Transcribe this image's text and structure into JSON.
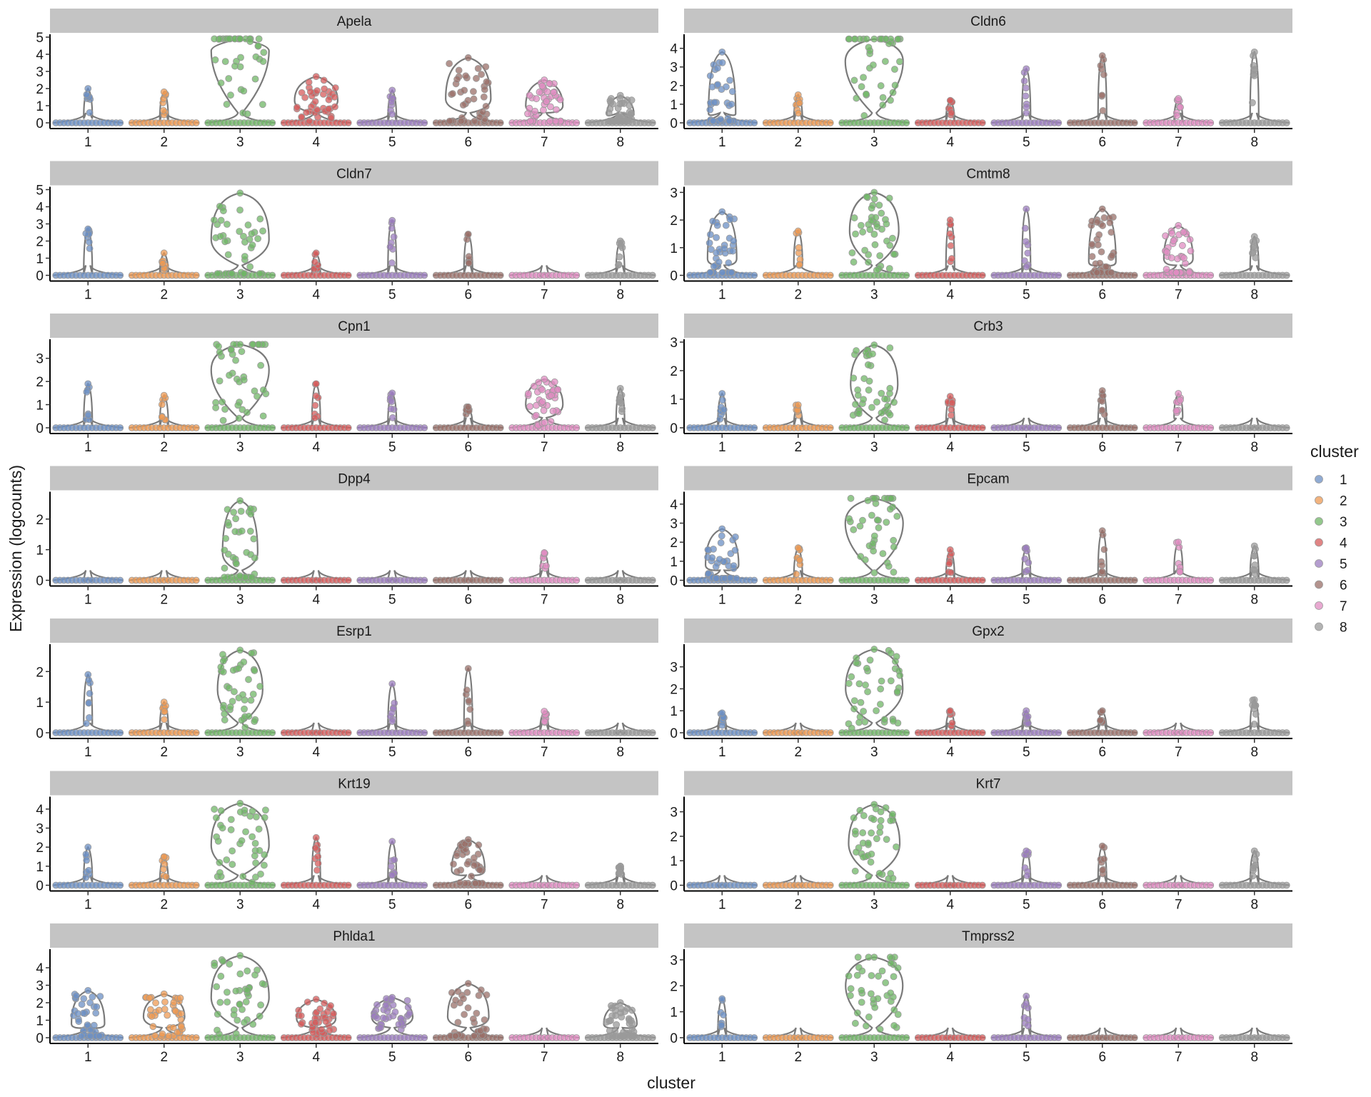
{
  "chart_data": {
    "type": "violin",
    "xlabel": "cluster",
    "ylabel": "Expression (logcounts)",
    "categories": [
      "1",
      "2",
      "3",
      "4",
      "5",
      "6",
      "7",
      "8"
    ],
    "legend": {
      "title": "cluster",
      "position": "right",
      "entries": [
        {
          "label": "1",
          "color": "#6b8fc4"
        },
        {
          "label": "2",
          "color": "#ee9a53"
        },
        {
          "label": "3",
          "color": "#6fb565"
        },
        {
          "label": "4",
          "color": "#d65b5b"
        },
        {
          "label": "5",
          "color": "#9b7cbf"
        },
        {
          "label": "6",
          "color": "#9a6f68"
        },
        {
          "label": "7",
          "color": "#e08cc2"
        },
        {
          "label": "8",
          "color": "#999999"
        }
      ]
    },
    "panels": [
      {
        "gene": "Apela",
        "yticks": [
          0,
          1,
          2,
          3,
          4,
          5
        ],
        "ymax": 5.0,
        "max": [
          2.0,
          1.8,
          4.9,
          2.7,
          1.9,
          3.8,
          2.5,
          1.6
        ],
        "median_band": [
          0.3,
          0.1,
          4.2,
          1.3,
          0.1,
          1.4,
          1.0,
          0.5
        ]
      },
      {
        "gene": "Cldn6",
        "yticks": [
          0,
          1,
          2,
          3,
          4
        ],
        "ymax": 4.6,
        "max": [
          3.8,
          1.5,
          4.5,
          1.2,
          2.9,
          3.6,
          1.3,
          3.8
        ],
        "median_band": [
          0.5,
          0.1,
          3.3,
          0.1,
          0.2,
          0.2,
          0.05,
          0.2
        ]
      },
      {
        "gene": "Cldn7",
        "yticks": [
          0,
          1,
          2,
          3,
          4,
          5
        ],
        "ymax": 5.0,
        "max": [
          2.7,
          1.3,
          4.8,
          1.3,
          3.2,
          2.4,
          0.1,
          2.0
        ],
        "median_band": [
          0.1,
          0.1,
          2.1,
          0.05,
          0.1,
          0.1,
          0.05,
          0.1
        ]
      },
      {
        "gene": "Cmtm8",
        "yticks": [
          0,
          1,
          2,
          3
        ],
        "ymax": 3.1,
        "max": [
          2.3,
          1.6,
          3.0,
          2.0,
          2.4,
          2.4,
          1.8,
          1.4
        ],
        "median_band": [
          0.6,
          0.4,
          1.6,
          0.2,
          0.1,
          0.5,
          0.6,
          0.2
        ]
      },
      {
        "gene": "Cpn1",
        "yticks": [
          0,
          1,
          2,
          3
        ],
        "ymax": 3.7,
        "max": [
          1.9,
          1.4,
          3.6,
          1.9,
          1.5,
          0.9,
          2.1,
          1.7
        ],
        "median_band": [
          0.1,
          0.05,
          2.5,
          0.1,
          0.1,
          0.05,
          1.0,
          0.1
        ]
      },
      {
        "gene": "Crb3",
        "yticks": [
          0,
          1,
          2,
          3
        ],
        "ymax": 3.0,
        "max": [
          1.2,
          0.8,
          2.9,
          1.1,
          0.05,
          1.3,
          1.2,
          0.05
        ],
        "median_band": [
          0.05,
          0.05,
          1.5,
          0.05,
          0.05,
          0.05,
          0.4,
          0.05
        ]
      },
      {
        "gene": "Dpp4",
        "yticks": [
          0,
          1,
          2
        ],
        "ymax": 2.8,
        "max": [
          0.05,
          0.05,
          2.6,
          0.05,
          0.05,
          0.05,
          0.9,
          0.05
        ],
        "median_band": [
          0.05,
          0.05,
          0.9,
          0.05,
          0.05,
          0.05,
          0.1,
          0.05
        ]
      },
      {
        "gene": "Epcam",
        "yticks": [
          0,
          1,
          2,
          3,
          4
        ],
        "ymax": 4.5,
        "max": [
          2.7,
          1.7,
          4.3,
          1.6,
          1.7,
          2.6,
          2.0,
          1.8
        ],
        "median_band": [
          0.8,
          0.1,
          3.0,
          0.1,
          0.1,
          0.2,
          0.4,
          0.1
        ]
      },
      {
        "gene": "Esrp1",
        "yticks": [
          0,
          1,
          2
        ],
        "ymax": 2.8,
        "max": [
          1.9,
          1.0,
          2.7,
          0.05,
          1.6,
          2.1,
          0.7,
          0.05
        ],
        "median_band": [
          0.3,
          0.05,
          1.4,
          0.05,
          0.05,
          0.05,
          0.05,
          0.05
        ]
      },
      {
        "gene": "Gpx2",
        "yticks": [
          0,
          1,
          2,
          3
        ],
        "ymax": 3.9,
        "max": [
          0.9,
          0.05,
          3.8,
          1.0,
          1.0,
          1.0,
          0.05,
          1.5
        ],
        "median_band": [
          0.05,
          0.05,
          2.0,
          0.05,
          0.05,
          0.05,
          0.05,
          0.05
        ]
      },
      {
        "gene": "Krt19",
        "yticks": [
          0,
          1,
          2,
          3,
          4
        ],
        "ymax": 4.5,
        "max": [
          2.0,
          1.5,
          4.3,
          2.5,
          2.3,
          2.4,
          0.05,
          1.0
        ],
        "median_band": [
          0.2,
          0.05,
          2.1,
          0.1,
          0.1,
          0.8,
          0.05,
          0.05
        ]
      },
      {
        "gene": "Krt7",
        "yticks": [
          0,
          1,
          2,
          3
        ],
        "ymax": 3.5,
        "max": [
          0.05,
          0.05,
          3.3,
          0.05,
          1.4,
          1.6,
          0.05,
          1.4
        ],
        "median_band": [
          0.05,
          0.05,
          1.7,
          0.05,
          0.05,
          0.05,
          0.05,
          0.05
        ]
      },
      {
        "gene": "Phlda1",
        "yticks": [
          0,
          1,
          2,
          3,
          4
        ],
        "ymax": 4.9,
        "max": [
          2.7,
          2.5,
          4.7,
          2.2,
          2.3,
          3.1,
          0.05,
          2.0
        ],
        "median_band": [
          0.8,
          1.2,
          2.3,
          1.1,
          1.2,
          1.2,
          0.05,
          0.8
        ]
      },
      {
        "gene": "Tmprss2",
        "yticks": [
          0,
          1,
          2,
          3
        ],
        "ymax": 3.3,
        "max": [
          1.5,
          0.05,
          3.1,
          0.05,
          1.6,
          0.05,
          0.05,
          0.05
        ],
        "median_band": [
          0.05,
          0.05,
          2.0,
          0.05,
          0.05,
          0.05,
          0.05,
          0.05
        ]
      }
    ]
  }
}
